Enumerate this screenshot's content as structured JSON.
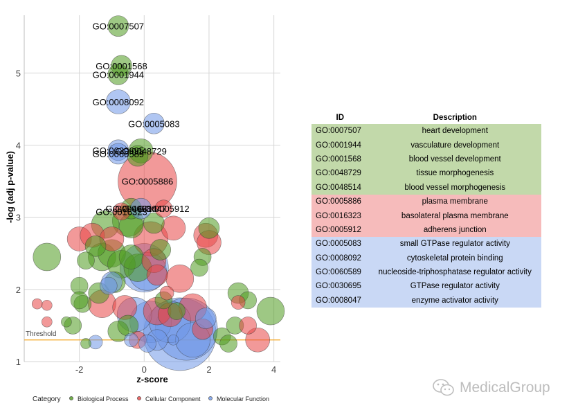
{
  "chart_data": {
    "type": "scatter",
    "subtype": "bubble",
    "title": "",
    "xlabel": "z-score",
    "ylabel": "-log (adj p-value)",
    "xlim": [
      -3.7,
      4.2
    ],
    "ylim": [
      1.0,
      5.8
    ],
    "xticks": [
      -2,
      0,
      2,
      4
    ],
    "xtick_labels": [
      "-2",
      "0",
      "2",
      "4"
    ],
    "yticks": [
      1,
      2,
      3,
      4,
      5
    ],
    "ytick_labels": [
      "1",
      "2",
      "3",
      "4",
      "5"
    ],
    "grid": true,
    "threshold": {
      "value": 1.3,
      "label": "Threshold",
      "color": "#f5a623"
    },
    "categories": [
      {
        "name": "Biological Process",
        "color": "#4f9a1f"
      },
      {
        "name": "Cellular Component",
        "color": "#e84545"
      },
      {
        "name": "Molecular Function",
        "color": "#6f98e8"
      }
    ],
    "legend": {
      "title": "Category",
      "position": "bottom"
    },
    "labeled_points": [
      {
        "id": "GO:0007507",
        "x": -0.8,
        "y": 5.65,
        "size": 3,
        "category": "Biological Process"
      },
      {
        "id": "GO:0001568",
        "x": -0.7,
        "y": 5.1,
        "size": 3,
        "category": "Biological Process"
      },
      {
        "id": "GO:0001944",
        "x": -0.8,
        "y": 4.98,
        "size": 3,
        "category": "Biological Process"
      },
      {
        "id": "GO:0008092",
        "x": -0.8,
        "y": 4.6,
        "size": 3.5,
        "category": "Molecular Function"
      },
      {
        "id": "GO:0005083",
        "x": 0.3,
        "y": 4.3,
        "size": 3,
        "category": "Molecular Function"
      },
      {
        "id": "GO:0048729",
        "x": -0.1,
        "y": 3.92,
        "size": 3.5,
        "category": "Biological Process"
      },
      {
        "id": "GO:0030695",
        "x": -0.8,
        "y": 3.93,
        "size": 3,
        "category": "Molecular Function"
      },
      {
        "id": "GO:0060589",
        "x": -0.8,
        "y": 3.88,
        "size": 3,
        "category": "Molecular Function"
      },
      {
        "id": "GO:0005886",
        "x": 0.1,
        "y": 3.5,
        "size": 8.5,
        "category": "Cellular Component"
      },
      {
        "id": "GO:0048514",
        "x": -0.4,
        "y": 3.12,
        "size": 3,
        "category": "Biological Process"
      },
      {
        "id": "GO:0008047",
        "x": -0.1,
        "y": 3.12,
        "size": 3,
        "category": "Molecular Function"
      },
      {
        "id": "GO:0005912",
        "x": 0.6,
        "y": 3.12,
        "size": 2.5,
        "category": "Cellular Component"
      },
      {
        "id": "GO:0016323",
        "x": -0.7,
        "y": 3.08,
        "size": 2.5,
        "category": "Cellular Component"
      }
    ],
    "points": [
      {
        "x": -3.0,
        "y": 2.45,
        "size": 4,
        "category": "Biological Process"
      },
      {
        "x": -1.2,
        "y": 2.9,
        "size": 4,
        "category": "Biological Process"
      },
      {
        "x": -0.5,
        "y": 2.95,
        "size": 4.5,
        "category": "Biological Process"
      },
      {
        "x": -0.4,
        "y": 2.88,
        "size": 3.5,
        "category": "Biological Process"
      },
      {
        "x": 0.3,
        "y": 2.92,
        "size": 3,
        "category": "Biological Process"
      },
      {
        "x": 2.0,
        "y": 2.85,
        "size": 3,
        "category": "Biological Process"
      },
      {
        "x": 1.8,
        "y": 2.45,
        "size": 2.5,
        "category": "Biological Process"
      },
      {
        "x": 1.7,
        "y": 2.3,
        "size": 2.5,
        "category": "Biological Process"
      },
      {
        "x": -1.8,
        "y": 2.4,
        "size": 2.5,
        "category": "Biological Process"
      },
      {
        "x": -1.5,
        "y": 2.6,
        "size": 3,
        "category": "Biological Process"
      },
      {
        "x": -1.3,
        "y": 2.45,
        "size": 4,
        "category": "Biological Process"
      },
      {
        "x": -1.0,
        "y": 2.5,
        "size": 4,
        "category": "Biological Process"
      },
      {
        "x": -0.7,
        "y": 2.35,
        "size": 4,
        "category": "Biological Process"
      },
      {
        "x": -0.4,
        "y": 2.45,
        "size": 3.5,
        "category": "Biological Process"
      },
      {
        "x": -0.2,
        "y": 2.3,
        "size": 4,
        "category": "Biological Process"
      },
      {
        "x": 0.5,
        "y": 2.55,
        "size": 3,
        "category": "Biological Process"
      },
      {
        "x": -2.0,
        "y": 2.05,
        "size": 2.5,
        "category": "Biological Process"
      },
      {
        "x": -1.9,
        "y": 1.8,
        "size": 2.5,
        "category": "Biological Process"
      },
      {
        "x": -1.4,
        "y": 1.95,
        "size": 3,
        "category": "Biological Process"
      },
      {
        "x": -0.9,
        "y": 2.1,
        "size": 3,
        "category": "Biological Process"
      },
      {
        "x": -2.0,
        "y": 1.85,
        "size": 2.5,
        "category": "Biological Process"
      },
      {
        "x": -2.2,
        "y": 1.5,
        "size": 2.5,
        "category": "Biological Process"
      },
      {
        "x": -1.8,
        "y": 1.25,
        "size": 1.5,
        "category": "Biological Process"
      },
      {
        "x": -2.4,
        "y": 1.55,
        "size": 1.5,
        "category": "Biological Process"
      },
      {
        "x": -0.8,
        "y": 1.42,
        "size": 3,
        "category": "Biological Process"
      },
      {
        "x": -0.5,
        "y": 1.5,
        "size": 3,
        "category": "Biological Process"
      },
      {
        "x": 2.4,
        "y": 1.35,
        "size": 2.5,
        "category": "Biological Process"
      },
      {
        "x": 2.6,
        "y": 1.25,
        "size": 2.5,
        "category": "Biological Process"
      },
      {
        "x": 2.8,
        "y": 1.5,
        "size": 2.5,
        "category": "Biological Process"
      },
      {
        "x": 2.9,
        "y": 1.95,
        "size": 3,
        "category": "Biological Process"
      },
      {
        "x": 3.2,
        "y": 1.85,
        "size": 2.5,
        "category": "Biological Process"
      },
      {
        "x": 3.9,
        "y": 1.7,
        "size": 4,
        "category": "Biological Process"
      },
      {
        "x": 0.6,
        "y": 1.85,
        "size": 2.5,
        "category": "Biological Process"
      },
      {
        "x": 1.0,
        "y": 1.7,
        "size": 2.5,
        "category": "Biological Process"
      },
      {
        "x": -0.2,
        "y": 3.85,
        "size": 3,
        "category": "Biological Process"
      },
      {
        "x": -2.0,
        "y": 2.7,
        "size": 3.5,
        "category": "Cellular Component"
      },
      {
        "x": -1.6,
        "y": 2.75,
        "size": 3.5,
        "category": "Cellular Component"
      },
      {
        "x": -1.0,
        "y": 2.7,
        "size": 3.5,
        "category": "Cellular Component"
      },
      {
        "x": 0.2,
        "y": 2.7,
        "size": 5,
        "category": "Cellular Component"
      },
      {
        "x": 0.9,
        "y": 2.85,
        "size": 3.5,
        "category": "Cellular Component"
      },
      {
        "x": 1.9,
        "y": 2.75,
        "size": 3.5,
        "category": "Cellular Component"
      },
      {
        "x": 2.0,
        "y": 2.65,
        "size": 3.5,
        "category": "Cellular Component"
      },
      {
        "x": 0.3,
        "y": 2.4,
        "size": 3.5,
        "category": "Cellular Component"
      },
      {
        "x": 1.1,
        "y": 2.15,
        "size": 4,
        "category": "Cellular Component"
      },
      {
        "x": 0.4,
        "y": 2.2,
        "size": 3,
        "category": "Cellular Component"
      },
      {
        "x": -1.3,
        "y": 1.8,
        "size": 4,
        "category": "Cellular Component"
      },
      {
        "x": -0.6,
        "y": 1.75,
        "size": 3.5,
        "category": "Cellular Component"
      },
      {
        "x": -3.3,
        "y": 1.8,
        "size": 1.5,
        "category": "Cellular Component"
      },
      {
        "x": -3.0,
        "y": 1.78,
        "size": 1.5,
        "category": "Cellular Component"
      },
      {
        "x": -3.0,
        "y": 1.55,
        "size": 1.5,
        "category": "Cellular Component"
      },
      {
        "x": 0.4,
        "y": 1.7,
        "size": 4,
        "category": "Cellular Component"
      },
      {
        "x": 0.8,
        "y": 1.65,
        "size": 3.5,
        "category": "Cellular Component"
      },
      {
        "x": 1.5,
        "y": 1.75,
        "size": 4,
        "category": "Cellular Component"
      },
      {
        "x": -0.2,
        "y": 1.3,
        "size": 2.5,
        "category": "Cellular Component"
      },
      {
        "x": 1.8,
        "y": 1.45,
        "size": 3,
        "category": "Cellular Component"
      },
      {
        "x": 3.2,
        "y": 1.5,
        "size": 2.5,
        "category": "Cellular Component"
      },
      {
        "x": 3.5,
        "y": 1.3,
        "size": 3.5,
        "category": "Cellular Component"
      },
      {
        "x": 2.9,
        "y": 1.82,
        "size": 2,
        "category": "Cellular Component"
      },
      {
        "x": 0.7,
        "y": 1.95,
        "size": 2,
        "category": "Cellular Component"
      },
      {
        "x": 0.0,
        "y": 2.3,
        "size": 7,
        "category": "Molecular Function"
      },
      {
        "x": 0.1,
        "y": 2.25,
        "size": 5.5,
        "category": "Molecular Function"
      },
      {
        "x": -1.0,
        "y": 2.1,
        "size": 3,
        "category": "Molecular Function"
      },
      {
        "x": -1.1,
        "y": 2.05,
        "size": 2.5,
        "category": "Molecular Function"
      },
      {
        "x": -0.3,
        "y": 1.65,
        "size": 5,
        "category": "Molecular Function"
      },
      {
        "x": 0.2,
        "y": 1.55,
        "size": 6,
        "category": "Molecular Function"
      },
      {
        "x": 1.1,
        "y": 1.38,
        "size": 10.5,
        "category": "Molecular Function"
      },
      {
        "x": 1.3,
        "y": 1.45,
        "size": 9,
        "category": "Molecular Function"
      },
      {
        "x": 0.8,
        "y": 1.55,
        "size": 6,
        "category": "Molecular Function"
      },
      {
        "x": 1.5,
        "y": 1.3,
        "size": 5,
        "category": "Molecular Function"
      },
      {
        "x": 1.9,
        "y": 1.6,
        "size": 3,
        "category": "Molecular Function"
      },
      {
        "x": 0.4,
        "y": 1.3,
        "size": 3,
        "category": "Molecular Function"
      },
      {
        "x": 0.1,
        "y": 1.25,
        "size": 2.5,
        "category": "Molecular Function"
      },
      {
        "x": -1.5,
        "y": 1.27,
        "size": 2,
        "category": "Molecular Function"
      },
      {
        "x": -0.4,
        "y": 1.3,
        "size": 2,
        "category": "Molecular Function"
      },
      {
        "x": 0.9,
        "y": 1.3,
        "size": 1.5,
        "category": "Molecular Function"
      }
    ]
  },
  "table": {
    "headers": [
      "ID",
      "Description"
    ],
    "rows": [
      {
        "id": "GO:0007507",
        "description": "heart development",
        "category": "bp"
      },
      {
        "id": "GO:0001944",
        "description": "vasculature development",
        "category": "bp"
      },
      {
        "id": "GO:0001568",
        "description": "blood vessel development",
        "category": "bp"
      },
      {
        "id": "GO:0048729",
        "description": "tissue morphogenesis",
        "category": "bp"
      },
      {
        "id": "GO:0048514",
        "description": "blood vessel morphogenesis",
        "category": "bp"
      },
      {
        "id": "GO:0005886",
        "description": "plasma membrane",
        "category": "cc"
      },
      {
        "id": "GO:0016323",
        "description": "basolateral plasma membrane",
        "category": "cc"
      },
      {
        "id": "GO:0005912",
        "description": "adherens junction",
        "category": "cc"
      },
      {
        "id": "GO:0005083",
        "description": "small GTPase regulator activity",
        "category": "mf"
      },
      {
        "id": "GO:0008092",
        "description": "cytoskeletal protein binding",
        "category": "mf"
      },
      {
        "id": "GO:0060589",
        "description": "nucleoside-triphosphatase regulator activity",
        "category": "mf"
      },
      {
        "id": "GO:0030695",
        "description": "GTPase regulator activity",
        "category": "mf"
      },
      {
        "id": "GO:0008047",
        "description": "enzyme activator activity",
        "category": "mf"
      }
    ]
  },
  "watermark": {
    "text": "MedicalGroup",
    "icon": "wechat-icon"
  }
}
